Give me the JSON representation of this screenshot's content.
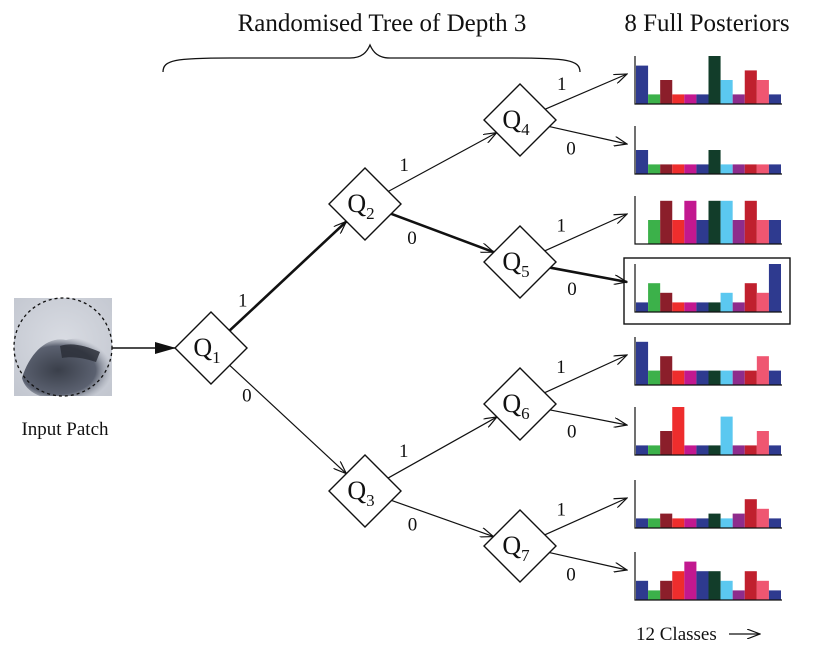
{
  "titles": {
    "tree": "Randomised Tree of Depth 3",
    "posteriors": "8 Full Posteriors",
    "input": "Input Patch",
    "classes": "12 Classes"
  },
  "nodes": [
    {
      "id": "Q1",
      "letter": "Q",
      "sub": "1"
    },
    {
      "id": "Q2",
      "letter": "Q",
      "sub": "2"
    },
    {
      "id": "Q3",
      "letter": "Q",
      "sub": "3"
    },
    {
      "id": "Q4",
      "letter": "Q",
      "sub": "4"
    },
    {
      "id": "Q5",
      "letter": "Q",
      "sub": "5"
    },
    {
      "id": "Q6",
      "letter": "Q",
      "sub": "6"
    },
    {
      "id": "Q7",
      "letter": "Q",
      "sub": "7"
    }
  ],
  "edges": [
    {
      "from": "Q1",
      "to": "Q2",
      "label": "1",
      "bold": true
    },
    {
      "from": "Q1",
      "to": "Q3",
      "label": "0",
      "bold": false
    },
    {
      "from": "Q2",
      "to": "Q4",
      "label": "1",
      "bold": false
    },
    {
      "from": "Q2",
      "to": "Q5",
      "label": "0",
      "bold": true
    },
    {
      "from": "Q3",
      "to": "Q6",
      "label": "1",
      "bold": false
    },
    {
      "from": "Q3",
      "to": "Q7",
      "label": "0",
      "bold": false
    },
    {
      "from": "Q4",
      "to": "P1",
      "label": "1",
      "bold": false
    },
    {
      "from": "Q4",
      "to": "P2",
      "label": "0",
      "bold": false
    },
    {
      "from": "Q5",
      "to": "P3",
      "label": "1",
      "bold": false
    },
    {
      "from": "Q5",
      "to": "P4",
      "label": "0",
      "bold": true
    },
    {
      "from": "Q6",
      "to": "P5",
      "label": "1",
      "bold": false
    },
    {
      "from": "Q6",
      "to": "P6",
      "label": "0",
      "bold": false
    },
    {
      "from": "Q7",
      "to": "P7",
      "label": "1",
      "bold": false
    },
    {
      "from": "Q7",
      "to": "P8",
      "label": "0",
      "bold": false
    }
  ],
  "class_colors": [
    "#2e3a8f",
    "#3cb14a",
    "#8b1e2a",
    "#ee2d2d",
    "#c2188f",
    "#2e3a8f",
    "#123d2a",
    "#5bc8f0",
    "#8e2c8c",
    "#c0202e",
    "#ef5671",
    "#2e3a8f"
  ],
  "posteriors": [
    {
      "id": "P1",
      "values": [
        0.8,
        0.2,
        0.5,
        0.2,
        0.2,
        0.2,
        1.0,
        0.5,
        0.2,
        0.7,
        0.5,
        0.2
      ],
      "selected": false
    },
    {
      "id": "P2",
      "values": [
        0.5,
        0.2,
        0.2,
        0.2,
        0.2,
        0.2,
        0.5,
        0.2,
        0.2,
        0.2,
        0.2,
        0.2
      ],
      "selected": false
    },
    {
      "id": "P3",
      "values": [
        0.0,
        0.5,
        0.9,
        0.5,
        0.9,
        0.5,
        0.9,
        0.9,
        0.5,
        0.9,
        0.5,
        0.5
      ],
      "selected": false
    },
    {
      "id": "P4",
      "values": [
        0.2,
        0.6,
        0.4,
        0.2,
        0.2,
        0.2,
        0.2,
        0.4,
        0.2,
        0.6,
        0.4,
        1.0
      ],
      "selected": true
    },
    {
      "id": "P5",
      "values": [
        0.9,
        0.3,
        0.6,
        0.3,
        0.3,
        0.3,
        0.3,
        0.3,
        0.3,
        0.3,
        0.6,
        0.3
      ],
      "selected": false
    },
    {
      "id": "P6",
      "values": [
        0.2,
        0.2,
        0.5,
        1.0,
        0.2,
        0.2,
        0.2,
        0.8,
        0.2,
        0.2,
        0.5,
        0.2
      ],
      "selected": false
    },
    {
      "id": "P7",
      "values": [
        0.2,
        0.2,
        0.3,
        0.2,
        0.2,
        0.2,
        0.3,
        0.2,
        0.3,
        0.6,
        0.4,
        0.2
      ],
      "selected": false
    },
    {
      "id": "P8",
      "values": [
        0.4,
        0.2,
        0.4,
        0.6,
        0.8,
        0.6,
        0.6,
        0.4,
        0.2,
        0.6,
        0.4,
        0.2
      ],
      "selected": false
    }
  ]
}
